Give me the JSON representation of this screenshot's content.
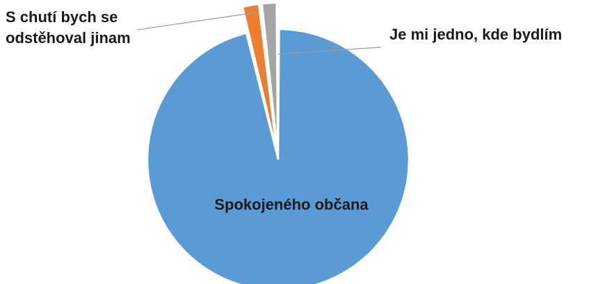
{
  "chart_data": {
    "type": "pie",
    "title": "",
    "slices": [
      {
        "label": "Spokojeného občana",
        "value": 96.2,
        "color": "#5b9bd5",
        "label_lines": [
          "Spokojeného občana"
        ]
      },
      {
        "label": "S chutí bych se odstěhoval jinam",
        "value": 2.0,
        "color": "#ed7d31",
        "label_lines": [
          "S chutí bych se",
          "odstěhoval jinam"
        ]
      },
      {
        "label": "Je mi jedno, kde bydlím",
        "value": 1.8,
        "color": "#a5a5a5",
        "label_lines": [
          "Je mi jedno, kde bydlím"
        ]
      }
    ],
    "start_angle_deg": 0,
    "direction": "clockwise",
    "exploded": true,
    "legend": "none"
  }
}
